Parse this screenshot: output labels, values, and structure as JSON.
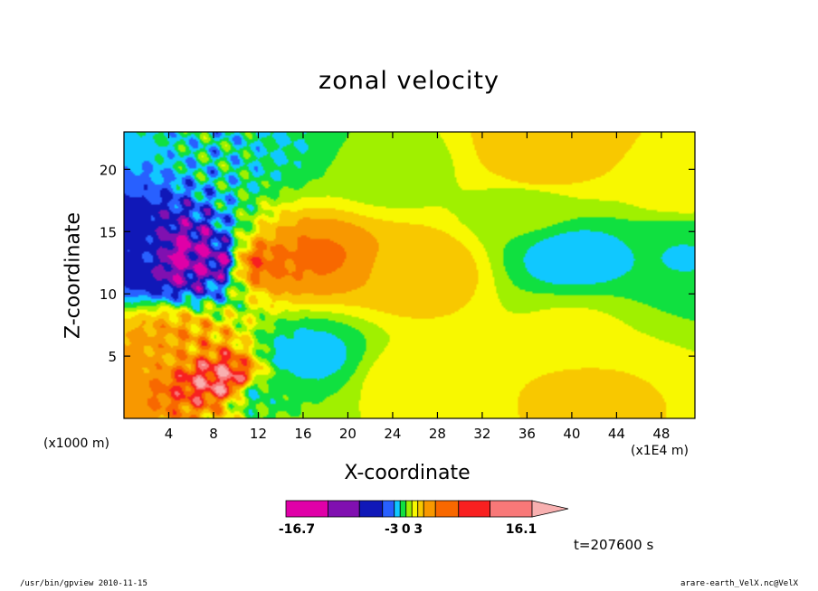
{
  "chart_data": {
    "type": "heatmap",
    "title": "zonal velocity",
    "xlabel": "X-coordinate",
    "ylabel": "Z-coordinate",
    "x_unit_left": "(x1000 m)",
    "x_unit_right": "(x1E4 m)",
    "xlim": [
      0,
      51
    ],
    "ylim": [
      0,
      23
    ],
    "x_ticks": [
      4,
      8,
      12,
      16,
      20,
      24,
      28,
      32,
      36,
      40,
      44,
      48
    ],
    "y_ticks": [
      5,
      10,
      15,
      20
    ],
    "colorbar": {
      "colors": [
        "#e000a8",
        "#8010b0",
        "#1018b8",
        "#2860ff",
        "#10c8ff",
        "#10e040",
        "#a0f000",
        "#f8f800",
        "#f8c800",
        "#f89800",
        "#f86800",
        "#f82020",
        "#f87878",
        "#f8b0b0"
      ],
      "tick_labels": [
        "-16.7",
        "-3",
        "0",
        "3",
        "16.1"
      ],
      "tick_values": [
        -16.7,
        -3,
        0,
        3,
        16.1
      ]
    },
    "field": [
      {
        "x": 2,
        "z": 13.2,
        "u": -10
      },
      {
        "x": 5,
        "z": 13,
        "u": -15
      },
      {
        "x": 8,
        "z": 12.6,
        "u": -13
      },
      {
        "x": 12,
        "z": 12.5,
        "u": 8
      },
      {
        "x": 17,
        "z": 13,
        "u": 7
      },
      {
        "x": 26,
        "z": 12,
        "u": 4
      },
      {
        "x": 26,
        "z": 3,
        "u": 1
      },
      {
        "x": 4,
        "z": 6,
        "u": 5
      },
      {
        "x": 9,
        "z": 3,
        "u": 12
      },
      {
        "x": 12,
        "z": 2,
        "u": -4
      },
      {
        "x": 16,
        "z": 5,
        "u": -6
      },
      {
        "x": 40,
        "z": 13,
        "u": -6
      },
      {
        "x": 36,
        "z": 17,
        "u": -2
      },
      {
        "x": 50,
        "z": 13,
        "u": -5
      },
      {
        "x": 41,
        "z": 2,
        "u": 2.5
      },
      {
        "x": 37,
        "z": 20,
        "u": 3
      },
      {
        "x": 40,
        "z": 7,
        "u": 0
      },
      {
        "x": 50,
        "z": 19,
        "u": 1
      },
      {
        "x": 13,
        "z": 22,
        "u": -5
      },
      {
        "x": 24,
        "z": 20,
        "u": -1.5
      },
      {
        "x": 38,
        "z": 22,
        "u": 4
      }
    ]
  },
  "annotations": {
    "time": "t=207600 s",
    "footer_left": "/usr/bin/gpview  2010-11-15",
    "footer_right": "arare-earth_VelX.nc@VelX"
  }
}
